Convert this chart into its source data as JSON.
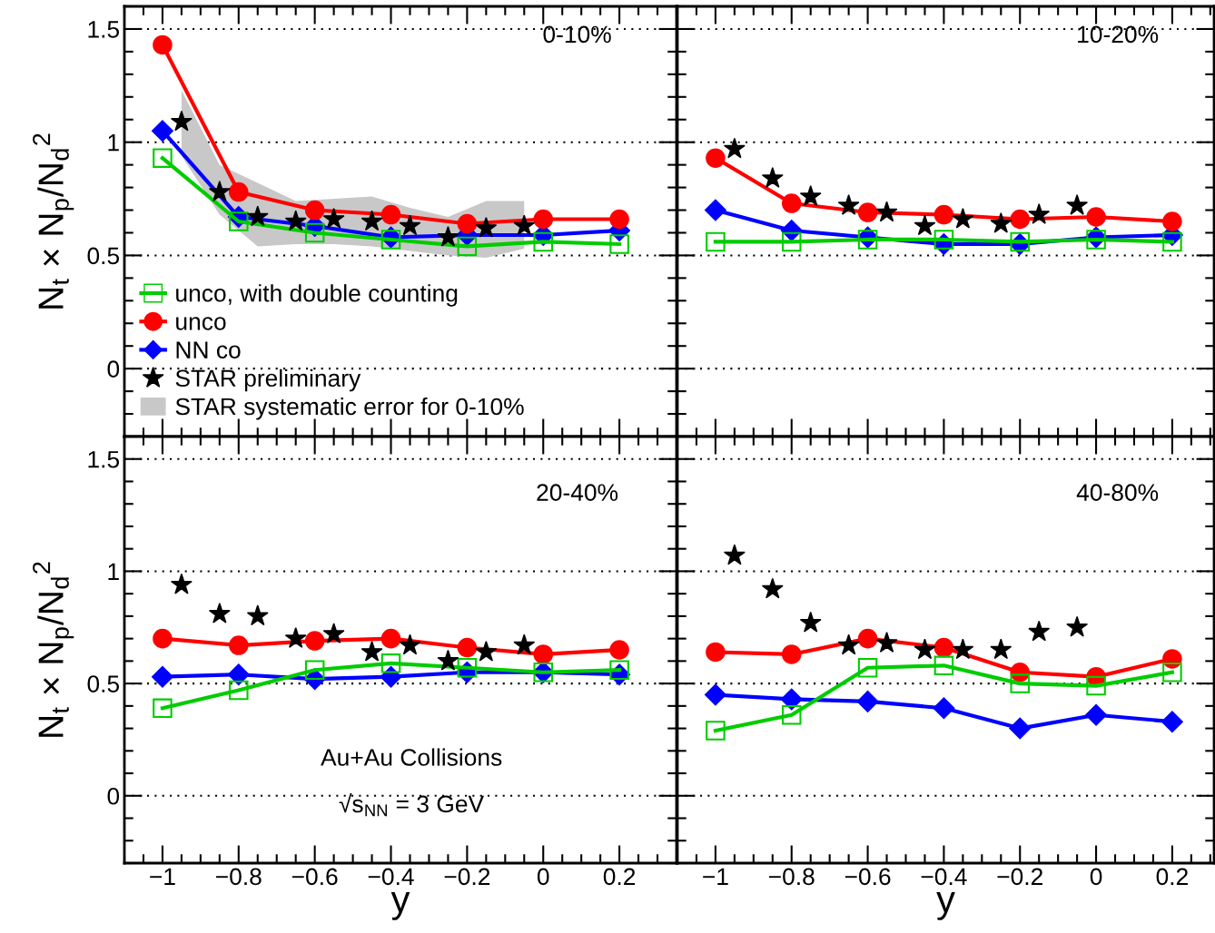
{
  "chart_data": [
    {
      "type": "line",
      "ylabel": "N$_{t}$ × N$_{p}$/N$_{d}$$^{2}$",
      "annotations": [
        "0-10%"
      ],
      "legend": "bottom left",
      "grid": "y",
      "tick_labels": "y",
      "xlim": [
        -1.1,
        0.35
      ],
      "ylim": [
        -0.3,
        1.6
      ],
      "xticks": [
        {
          "value": -1,
          "label": null
        },
        {
          "value": -0.8,
          "label": null
        },
        {
          "value": -0.6,
          "label": null
        },
        {
          "value": -0.4,
          "label": null
        },
        {
          "value": -0.2,
          "label": null
        },
        {
          "value": 0,
          "label": null
        },
        {
          "value": 0.2,
          "label": null
        }
      ],
      "yticks": [
        0,
        0.5,
        1,
        1.5
      ],
      "series": [
        {
          "name": "unco, with double counting",
          "marker": "square",
          "color": "#00cc00",
          "x": [
            -1,
            -0.8,
            -0.6,
            -0.4,
            -0.2,
            0,
            0.2
          ],
          "values": [
            0.93,
            0.65,
            0.6,
            0.57,
            0.54,
            0.56,
            0.55
          ]
        },
        {
          "name": "unco",
          "marker": "circle",
          "color": "#ff0000",
          "x": [
            -1,
            -0.8,
            -0.6,
            -0.4,
            -0.2,
            0,
            0.2
          ],
          "values": [
            1.43,
            0.78,
            0.7,
            0.68,
            0.64,
            0.66,
            0.66
          ]
        },
        {
          "name": "NN co",
          "marker": "diamond",
          "color": "#0000ff",
          "x": [
            -1,
            -0.8,
            -0.6,
            -0.4,
            -0.2,
            0,
            0.2
          ],
          "values": [
            1.05,
            0.67,
            0.63,
            0.58,
            0.59,
            0.59,
            0.61
          ]
        },
        {
          "name": "STAR preliminary",
          "type": "scatter",
          "marker": "star",
          "color": "#000000",
          "x": [
            -0.95,
            -0.85,
            -0.75,
            -0.65,
            -0.55,
            -0.45,
            -0.35,
            -0.25,
            -0.15,
            -0.05
          ],
          "values": [
            1.09,
            0.78,
            0.67,
            0.65,
            0.66,
            0.65,
            0.63,
            0.58,
            0.62,
            0.63
          ]
        },
        {
          "name": "STAR systematic error for 0-10%",
          "type": "area",
          "color": "#c8c8c8",
          "x": [
            -0.95,
            -0.85,
            -0.75,
            -0.65,
            -0.55,
            -0.45,
            -0.35,
            -0.25,
            -0.15,
            -0.05
          ],
          "values": [
            null,
            null,
            null,
            null,
            null,
            null,
            null,
            null,
            null,
            null
          ],
          "lower": [
            0.94,
            0.68,
            0.54,
            0.55,
            0.55,
            0.54,
            0.52,
            0.5,
            0.49,
            0.53
          ],
          "upper": [
            1.23,
            0.9,
            0.82,
            0.74,
            0.75,
            0.76,
            0.71,
            0.67,
            0.74,
            0.74
          ]
        }
      ]
    },
    {
      "type": "line",
      "annotations": [
        "10-20%"
      ],
      "grid": "y",
      "tick_labels": false,
      "xlim": [
        -1.1,
        0.31
      ],
      "ylim": [
        -0.3,
        1.6
      ],
      "xticks": [
        {
          "value": -1,
          "label": null
        },
        {
          "value": -0.8,
          "label": null
        },
        {
          "value": -0.6,
          "label": null
        },
        {
          "value": -0.4,
          "label": null
        },
        {
          "value": -0.2,
          "label": null
        },
        {
          "value": 0,
          "label": null
        },
        {
          "value": 0.2,
          "label": null
        }
      ],
      "yticks": [
        0,
        0.5,
        1,
        1.5
      ],
      "series": [
        {
          "marker": "square",
          "color": "#00cc00",
          "x": [
            -1,
            -0.8,
            -0.6,
            -0.4,
            -0.2,
            0,
            0.2
          ],
          "values": [
            0.56,
            0.56,
            0.57,
            0.57,
            0.56,
            0.57,
            0.56
          ]
        },
        {
          "marker": "circle",
          "color": "#ff0000",
          "x": [
            -1,
            -0.8,
            -0.6,
            -0.4,
            -0.2,
            0,
            0.2
          ],
          "values": [
            0.93,
            0.73,
            0.69,
            0.68,
            0.66,
            0.67,
            0.65
          ]
        },
        {
          "marker": "diamond",
          "color": "#0000ff",
          "x": [
            -1,
            -0.8,
            -0.6,
            -0.4,
            -0.2,
            0,
            0.2
          ],
          "values": [
            0.7,
            0.61,
            0.58,
            0.55,
            0.55,
            0.58,
            0.59
          ]
        },
        {
          "type": "scatter",
          "marker": "star",
          "color": "#000000",
          "x": [
            -0.95,
            -0.85,
            -0.75,
            -0.65,
            -0.55,
            -0.45,
            -0.35,
            -0.25,
            -0.15,
            -0.05
          ],
          "values": [
            0.97,
            0.84,
            0.76,
            0.72,
            0.69,
            0.63,
            0.66,
            0.64,
            0.68,
            0.72
          ]
        }
      ]
    },
    {
      "type": "line",
      "xlabel": "y",
      "ylabel": "N$_{t}$ × N$_{p}$/N$_{d}$$^{2}$",
      "annotations": [
        "20-40%",
        "Au+Au Collisions",
        "√s$_{NN}$ = 3 GeV"
      ],
      "grid": "y",
      "xlim": [
        -1.1,
        0.35
      ],
      "ylim": [
        -0.3,
        1.6
      ],
      "xticks": [
        {
          "value": -1,
          "label": "−1"
        },
        {
          "value": -0.8,
          "label": "−0.8"
        },
        {
          "value": -0.6,
          "label": "−0.6"
        },
        {
          "value": -0.4,
          "label": "−0.4"
        },
        {
          "value": -0.2,
          "label": "−0.2"
        },
        0,
        0.2
      ],
      "yticks": [
        0,
        0.5,
        1,
        1.5
      ],
      "series": [
        {
          "marker": "square",
          "color": "#00cc00",
          "x": [
            -1,
            -0.8,
            -0.6,
            -0.4,
            -0.2,
            0,
            0.2
          ],
          "values": [
            0.39,
            0.47,
            0.56,
            0.59,
            0.57,
            0.55,
            0.56
          ]
        },
        {
          "marker": "circle",
          "color": "#ff0000",
          "x": [
            -1,
            -0.8,
            -0.6,
            -0.4,
            -0.2,
            0,
            0.2
          ],
          "values": [
            0.7,
            0.67,
            0.69,
            0.7,
            0.66,
            0.63,
            0.65
          ]
        },
        {
          "marker": "diamond",
          "color": "#0000ff",
          "x": [
            -1,
            -0.8,
            -0.6,
            -0.4,
            -0.2,
            0,
            0.2
          ],
          "values": [
            0.53,
            0.54,
            0.52,
            0.53,
            0.55,
            0.55,
            0.54
          ]
        },
        {
          "type": "scatter",
          "marker": "star",
          "color": "#000000",
          "x": [
            -0.95,
            -0.85,
            -0.75,
            -0.65,
            -0.55,
            -0.45,
            -0.35,
            -0.25,
            -0.15,
            -0.05
          ],
          "values": [
            0.94,
            0.81,
            0.8,
            0.7,
            0.72,
            0.64,
            0.67,
            0.6,
            0.64,
            0.67
          ]
        }
      ]
    },
    {
      "type": "line",
      "xlabel": "y",
      "annotations": [
        "40-80%"
      ],
      "grid": "y",
      "tick_labels": "x",
      "xlim": [
        -1.1,
        0.31
      ],
      "ylim": [
        -0.3,
        1.6
      ],
      "xticks": [
        {
          "value": -1,
          "label": "−1"
        },
        {
          "value": -0.8,
          "label": "−0.8"
        },
        {
          "value": -0.6,
          "label": "−0.6"
        },
        {
          "value": -0.4,
          "label": "−0.4"
        },
        {
          "value": -0.2,
          "label": "−0.2"
        },
        0,
        0.2
      ],
      "yticks": [
        0,
        0.5,
        1,
        1.5
      ],
      "series": [
        {
          "marker": "square",
          "color": "#00cc00",
          "x": [
            -1,
            -0.8,
            -0.6,
            -0.4,
            -0.2,
            0,
            0.2
          ],
          "values": [
            0.29,
            0.36,
            0.57,
            0.58,
            0.5,
            0.49,
            0.55
          ]
        },
        {
          "marker": "circle",
          "color": "#ff0000",
          "x": [
            -1,
            -0.8,
            -0.6,
            -0.4,
            -0.2,
            0,
            0.2
          ],
          "values": [
            0.64,
            0.63,
            0.7,
            0.66,
            0.55,
            0.53,
            0.61
          ]
        },
        {
          "marker": "diamond",
          "color": "#0000ff",
          "x": [
            -1,
            -0.8,
            -0.6,
            -0.4,
            -0.2,
            0,
            0.2
          ],
          "values": [
            0.45,
            0.43,
            0.42,
            0.39,
            0.3,
            0.36,
            0.33
          ]
        },
        {
          "type": "scatter",
          "marker": "star",
          "color": "#000000",
          "x": [
            -0.95,
            -0.85,
            -0.75,
            -0.65,
            -0.55,
            -0.45,
            -0.35,
            -0.25,
            -0.15,
            -0.05
          ],
          "values": [
            1.07,
            0.92,
            0.77,
            0.67,
            0.68,
            0.65,
            0.65,
            0.65,
            0.73,
            0.75
          ]
        }
      ]
    }
  ]
}
